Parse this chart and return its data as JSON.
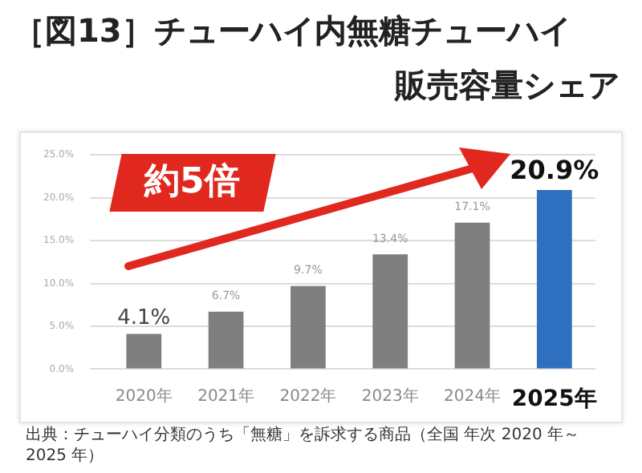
{
  "chart_data": {
    "type": "bar",
    "title": "［図13］チューハイ内無糖チューハイ",
    "subtitle": "販売容量シェア",
    "categories": [
      "2020年",
      "2021年",
      "2022年",
      "2023年",
      "2024年",
      "2025年"
    ],
    "values": [
      4.1,
      6.7,
      9.7,
      13.4,
      17.1,
      20.9
    ],
    "colors": [
      "#7f7f7f",
      "#7f7f7f",
      "#7f7f7f",
      "#7f7f7f",
      "#7f7f7f",
      "#2e6fc0"
    ],
    "value_labels": [
      "4.1%",
      "6.7%",
      "9.7%",
      "13.4%",
      "17.1%",
      "20.9%"
    ],
    "ylim": [
      0,
      25
    ],
    "yticks": [
      {
        "value": 0,
        "label": "0.0%"
      },
      {
        "value": 5,
        "label": "5.0%"
      },
      {
        "value": 10,
        "label": "10.0%"
      },
      {
        "value": 15,
        "label": "15.0%"
      },
      {
        "value": 20,
        "label": "20.0%"
      },
      {
        "value": 25,
        "label": "25.0%"
      }
    ],
    "grid": "y",
    "legend": false,
    "annotations": [
      "約5倍",
      "出典：チューハイ分類のうち「無糖」を訴求する商品（全国 年次 2020 年～2025 年）"
    ]
  }
}
